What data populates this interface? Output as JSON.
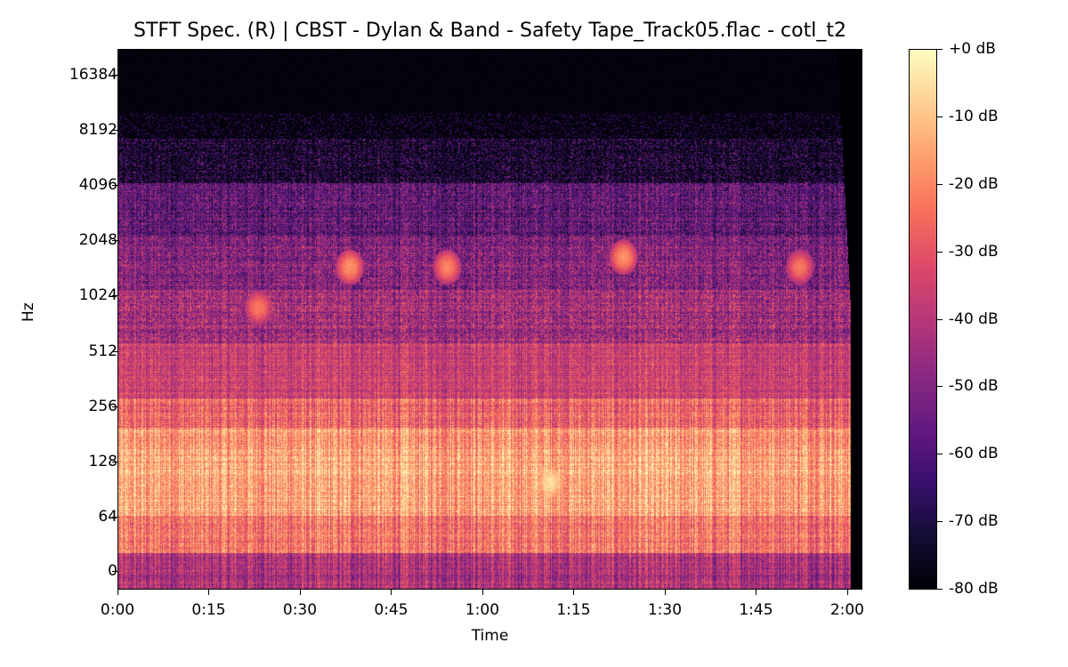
{
  "chart_data": {
    "type": "heatmap",
    "title": "STFT Spec. (R) | CBST - Dylan & Band - Safety Tape_Track05.flac - cotl_t2",
    "xlabel": "Time",
    "ylabel": "Hz",
    "colormap": "magma",
    "x_ticks": [
      "0:00",
      "0:15",
      "0:30",
      "0:45",
      "1:00",
      "1:15",
      "1:30",
      "1:45",
      "2:00"
    ],
    "x_tick_seconds": [
      0,
      15,
      30,
      45,
      60,
      75,
      90,
      105,
      120
    ],
    "x_range_seconds": [
      0,
      122.5
    ],
    "audio_end_seconds": 120.5,
    "y_ticks": [
      "16384",
      "8192",
      "4096",
      "2048",
      "1024",
      "512",
      "256",
      "128",
      "64",
      "0"
    ],
    "y_tick_hz": [
      16384,
      8192,
      4096,
      2048,
      1024,
      512,
      256,
      128,
      64,
      0
    ],
    "y_scale": "log",
    "colorbar": {
      "ticks": [
        "+0 dB",
        "-10 dB",
        "-20 dB",
        "-30 dB",
        "-40 dB",
        "-50 dB",
        "-60 dB",
        "-70 dB",
        "-80 dB"
      ],
      "values": [
        0,
        -10,
        -20,
        -30,
        -40,
        -50,
        -60,
        -70,
        -80
      ],
      "range": [
        -80,
        0
      ]
    },
    "band_levels_db": [
      {
        "range_hz": "0-40",
        "mean_db": -42
      },
      {
        "range_hz": "40-70",
        "mean_db": -24
      },
      {
        "range_hz": "70-140",
        "mean_db": -15
      },
      {
        "range_hz": "140-200",
        "mean_db": -17
      },
      {
        "range_hz": "200-280",
        "mean_db": -26
      },
      {
        "range_hz": "280-500",
        "mean_db": -36
      },
      {
        "range_hz": "500-1000",
        "mean_db": -44
      },
      {
        "range_hz": "1000-2000",
        "mean_db": -50
      },
      {
        "range_hz": "2000-4000",
        "mean_db": -57
      },
      {
        "range_hz": "4000-7000",
        "mean_db": -66
      },
      {
        "range_hz": "7000-22050",
        "mean_db": -80
      }
    ],
    "highlights": [
      {
        "time": "0:38",
        "hz": 1500,
        "db": -18
      },
      {
        "time": "0:54",
        "hz": 1500,
        "db": -20
      },
      {
        "time": "1:23",
        "hz": 1700,
        "db": -18
      },
      {
        "time": "1:11",
        "hz": 100,
        "db": -5
      },
      {
        "time": "0:23",
        "hz": 900,
        "db": -22
      },
      {
        "time": "1:52",
        "hz": 1500,
        "db": -22
      }
    ]
  }
}
